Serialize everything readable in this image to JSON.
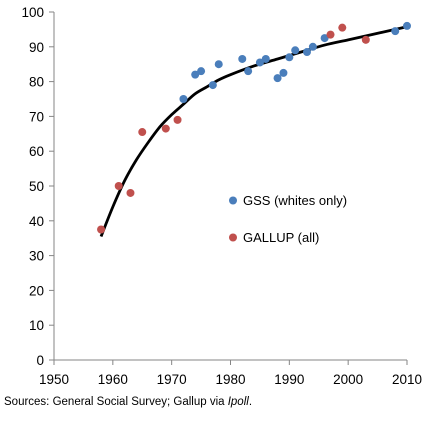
{
  "chart_data": {
    "type": "scatter",
    "title": "",
    "xlabel": "",
    "ylabel": "",
    "xlim": [
      1950,
      2010
    ],
    "ylim": [
      0,
      100
    ],
    "x_ticks": [
      1950,
      1960,
      1970,
      1980,
      1990,
      2000,
      2010
    ],
    "y_ticks": [
      0,
      10,
      20,
      30,
      40,
      50,
      60,
      70,
      80,
      90,
      100
    ],
    "grid": false,
    "legend_position": "center-right",
    "series": [
      {
        "name": "GSS (whites only)",
        "color": "#4a7ebb",
        "points": [
          [
            1972,
            75
          ],
          [
            1974,
            82
          ],
          [
            1975,
            83
          ],
          [
            1977,
            79
          ],
          [
            1978,
            85
          ],
          [
            1982,
            86.5
          ],
          [
            1983,
            83
          ],
          [
            1985,
            85.5
          ],
          [
            1986,
            86.5
          ],
          [
            1988,
            81
          ],
          [
            1989,
            82.5
          ],
          [
            1990,
            87
          ],
          [
            1991,
            89
          ],
          [
            1993,
            88.5
          ],
          [
            1994,
            90
          ],
          [
            1996,
            92.5
          ],
          [
            2008,
            94.5
          ],
          [
            2010,
            96
          ]
        ]
      },
      {
        "name": "GALLUP (all)",
        "color": "#c0504d",
        "points": [
          [
            1958,
            37.5
          ],
          [
            1961,
            50
          ],
          [
            1963,
            48
          ],
          [
            1965,
            65.5
          ],
          [
            1969,
            66.5
          ],
          [
            1971,
            69
          ],
          [
            1997,
            93.5
          ],
          [
            1999,
            95.5
          ],
          [
            2003,
            92
          ]
        ]
      }
    ],
    "trend_line": {
      "x": [
        1958,
        1960,
        1962,
        1964,
        1966,
        1968,
        1970,
        1972,
        1974,
        1976,
        1978,
        1980,
        1984,
        1988,
        1992,
        1996,
        2000,
        2004,
        2008,
        2010
      ],
      "y": [
        35.5,
        44,
        51.5,
        57.5,
        62.5,
        67,
        70.5,
        73.5,
        76.5,
        78.5,
        80.5,
        82,
        84.5,
        86.5,
        88.5,
        90.5,
        92,
        93.5,
        95,
        95.8
      ]
    }
  },
  "source": {
    "prefix": "Sources: General Social Survey; Gallup via ",
    "emphasis": "Ipoll",
    "suffix": "."
  }
}
